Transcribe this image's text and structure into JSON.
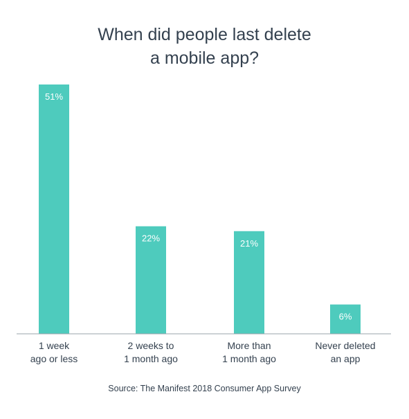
{
  "chart_data": {
    "type": "bar",
    "title_lines": [
      "When did people last delete",
      "a mobile app?"
    ],
    "categories": [
      [
        "1 week",
        "ago or less"
      ],
      [
        "2 weeks to",
        "1 month ago"
      ],
      [
        "More than",
        "1 month ago"
      ],
      [
        "Never deleted",
        "an app"
      ]
    ],
    "values": [
      51,
      22,
      21,
      6
    ],
    "value_labels": [
      "51%",
      "22%",
      "21%",
      "6%"
    ],
    "ylim": [
      0,
      51
    ],
    "grid": false,
    "bar_color": "#4ecbbd",
    "axis_color": "#9aa3ab",
    "text_color": "#34414f",
    "source": "Source: The Manifest 2018 Consumer App Survey"
  }
}
